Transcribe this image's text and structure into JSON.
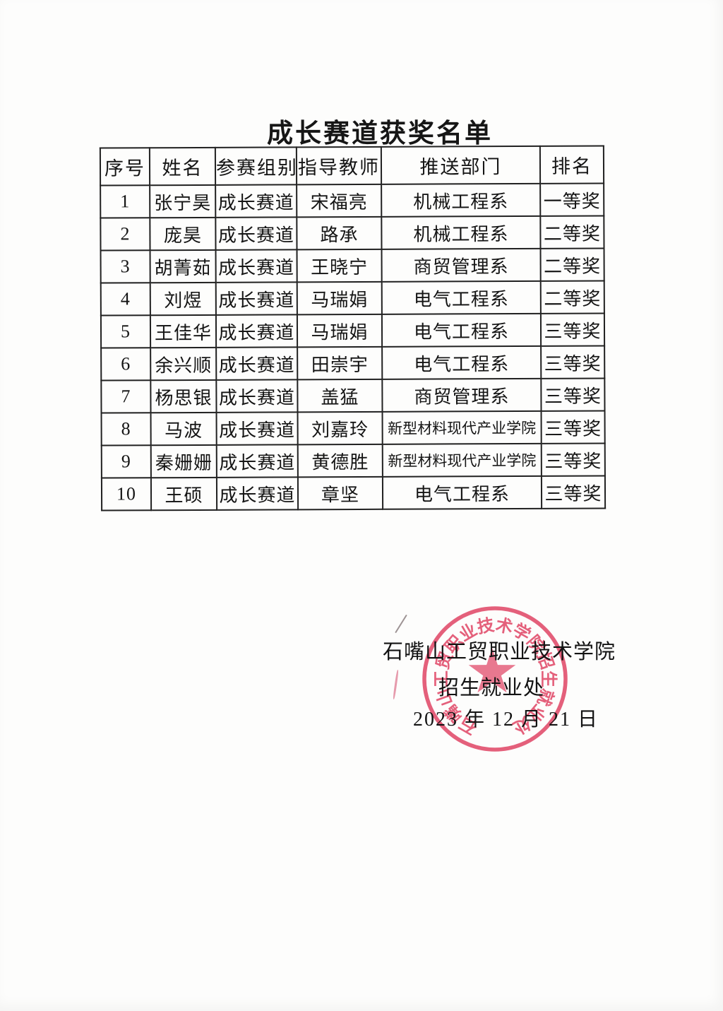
{
  "document": {
    "title": "成长赛道获奖名单"
  },
  "table": {
    "headers": [
      "序号",
      "姓名",
      "参赛组别",
      "指导教师",
      "推送部门",
      "排名"
    ],
    "rows": [
      [
        "1",
        "张宁昊",
        "成长赛道",
        "宋福亮",
        "机械工程系",
        "一等奖"
      ],
      [
        "2",
        "庞昊",
        "成长赛道",
        "路承",
        "机械工程系",
        "二等奖"
      ],
      [
        "3",
        "胡菁茹",
        "成长赛道",
        "王晓宁",
        "商贸管理系",
        "二等奖"
      ],
      [
        "4",
        "刘煜",
        "成长赛道",
        "马瑞娟",
        "电气工程系",
        "二等奖"
      ],
      [
        "5",
        "王佳华",
        "成长赛道",
        "马瑞娟",
        "电气工程系",
        "三等奖"
      ],
      [
        "6",
        "余兴顺",
        "成长赛道",
        "田崇宇",
        "电气工程系",
        "三等奖"
      ],
      [
        "7",
        "杨思银",
        "成长赛道",
        "盖猛",
        "商贸管理系",
        "三等奖"
      ],
      [
        "8",
        "马波",
        "成长赛道",
        "刘嘉玲",
        "新型材料现代产业学院",
        "三等奖"
      ],
      [
        "9",
        "秦姗姗",
        "成长赛道",
        "黄德胜",
        "新型材料现代产业学院",
        "三等奖"
      ],
      [
        "10",
        "王硕",
        "成长赛道",
        "章坚",
        "电气工程系",
        "三等奖"
      ]
    ]
  },
  "signature": {
    "org_line": "石嘴山工贸职业技术学院",
    "dept_line": "招生就业处",
    "date_line": "2023 年 12 月 21 日"
  },
  "seal": {
    "ring_text": "石嘴山工贸职业技术学院招生就业处",
    "color": "#e2506e"
  }
}
